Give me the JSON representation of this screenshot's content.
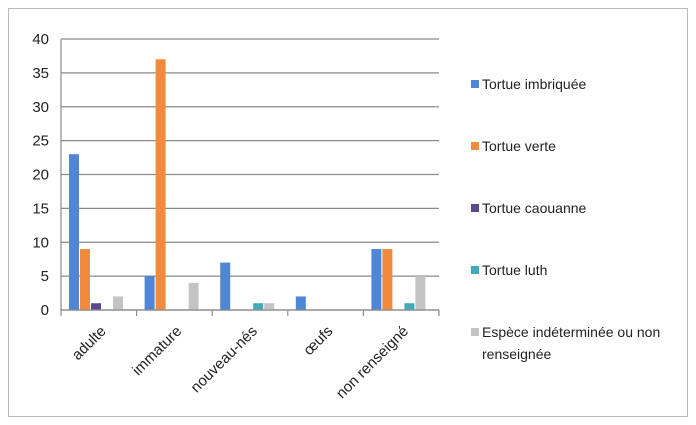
{
  "chart_data": {
    "type": "bar",
    "categories": [
      "adulte",
      "immature",
      "nouveau-nés",
      "œufs",
      "non renseigné"
    ],
    "series": [
      {
        "name": "Tortue imbriquée",
        "color": "#4f86d6",
        "values": [
          23,
          5,
          7,
          2,
          9
        ]
      },
      {
        "name": "Tortue verte",
        "color": "#f08a3c",
        "values": [
          9,
          37,
          0,
          0,
          9
        ]
      },
      {
        "name": "Tortue caouanne",
        "color": "#5a4a8a",
        "values": [
          1,
          0,
          0,
          0,
          0
        ]
      },
      {
        "name": "Tortue luth",
        "color": "#41a9b8",
        "values": [
          0,
          0,
          1,
          0,
          1
        ]
      },
      {
        "name": "Espèce indéterminée ou non renseignée",
        "color": "#c4c4c4",
        "values": [
          2,
          4,
          1,
          0,
          5
        ]
      }
    ],
    "ylim": [
      0,
      40
    ],
    "yticks": [
      0,
      5,
      10,
      15,
      20,
      25,
      30,
      35,
      40
    ],
    "grid": true,
    "legend_position": "right",
    "title": "",
    "xlabel": "",
    "ylabel": ""
  }
}
